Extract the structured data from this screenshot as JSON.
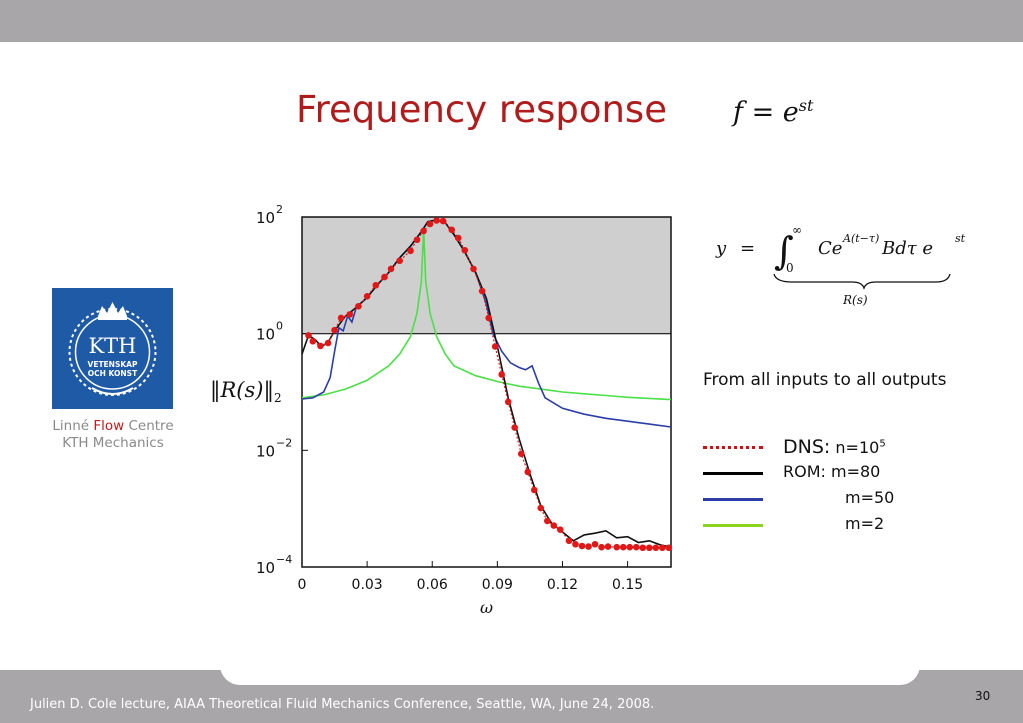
{
  "slide": {
    "title": "Frequency response",
    "title_equation": "f = e",
    "title_equation_sup": "st",
    "logo": {
      "name": "KTH",
      "line1": "VETENSKAP",
      "line2": "OCH KONST"
    },
    "logo_caption": {
      "part1": "Linné ",
      "flow": "Flow",
      "part2": " Centre",
      "line2": "KTH Mechanics"
    },
    "ylabel": "‖R(s)‖",
    "ylabel_sub": "2",
    "xlabel": "ω",
    "equation_right": "y = ∫₀^∞ C e^{A(t−τ)} B dτ e^{st}",
    "equation_right_under": "R(s)",
    "subtitle": "From all inputs to all outputs",
    "footer": "Julien D. Cole lecture, AIAA Theoretical Fluid Mechanics Conference, Seattle, WA, June 24, 2008.",
    "page_number": "30"
  },
  "legend": [
    {
      "label_prefix": "DNS:",
      "label": " n=10",
      "sup": "5",
      "color": "#cc1111",
      "style": "dotted"
    },
    {
      "label_prefix": "ROM:",
      "label": " m=80",
      "sup": "",
      "color": "#000000",
      "style": "solid"
    },
    {
      "label_prefix": "",
      "label": "m=50",
      "sup": "",
      "color": "#2b3ea8",
      "style": "solid"
    },
    {
      "label_prefix": "",
      "label": "m=2",
      "sup": "",
      "color": "#8fd21e",
      "style": "solid"
    }
  ],
  "chart_data": {
    "type": "line",
    "xlabel": "ω",
    "ylabel": "‖R(s)‖₂",
    "xlim": [
      0,
      0.17
    ],
    "ylim_log10": [
      -4,
      2
    ],
    "yscale": "log",
    "x_ticks": [
      "0",
      "0.03",
      "0.06",
      "0.09",
      "0.12",
      "0.15"
    ],
    "x_tick_values": [
      0,
      0.03,
      0.06,
      0.09,
      0.12,
      0.15
    ],
    "y_tick_exponents": [
      2,
      0,
      -2,
      -4
    ],
    "shaded_region_log10": [
      0,
      2
    ],
    "series": [
      {
        "name": "DNS: n=10^5",
        "color": "#e01818",
        "marker": "dot",
        "x": [
          0.003,
          0.005,
          0.0085,
          0.012,
          0.015,
          0.018,
          0.022,
          0.026,
          0.03,
          0.034,
          0.038,
          0.041,
          0.045,
          0.05,
          0.053,
          0.056,
          0.059,
          0.062,
          0.065,
          0.069,
          0.072,
          0.075,
          0.079,
          0.083,
          0.086,
          0.089,
          0.092,
          0.095,
          0.098,
          0.101,
          0.104,
          0.107,
          0.11,
          0.113,
          0.116,
          0.119,
          0.123,
          0.126,
          0.129,
          0.132,
          0.135,
          0.138,
          0.141,
          0.145,
          0.148,
          0.151,
          0.154,
          0.157,
          0.16,
          0.163,
          0.166,
          0.169
        ],
        "log10y": [
          -0.03,
          -0.13,
          -0.21,
          -0.16,
          0.06,
          0.27,
          0.33,
          0.47,
          0.64,
          0.83,
          0.97,
          1.11,
          1.25,
          1.42,
          1.61,
          1.76,
          1.88,
          1.94,
          1.93,
          1.78,
          1.64,
          1.43,
          1.11,
          0.73,
          0.27,
          -0.22,
          -0.7,
          -1.17,
          -1.61,
          -2.06,
          -2.37,
          -2.68,
          -2.99,
          -3.21,
          -3.29,
          -3.36,
          -3.55,
          -3.61,
          -3.64,
          -3.65,
          -3.61,
          -3.66,
          -3.65,
          -3.66,
          -3.66,
          -3.66,
          -3.66,
          -3.67,
          -3.67,
          -3.67,
          -3.67,
          -3.67
        ]
      },
      {
        "name": "ROM: m=80",
        "color": "#111111",
        "x": [
          0,
          0.003,
          0.006,
          0.009,
          0.012,
          0.015,
          0.02,
          0.025,
          0.03,
          0.035,
          0.04,
          0.045,
          0.05,
          0.055,
          0.058,
          0.062,
          0.066,
          0.07,
          0.075,
          0.08,
          0.085,
          0.09,
          0.095,
          0.1,
          0.105,
          0.11,
          0.115,
          0.12,
          0.125,
          0.13,
          0.135,
          0.14,
          0.145,
          0.15,
          0.155,
          0.16,
          0.165,
          0.17
        ],
        "log10y": [
          -0.35,
          -0.03,
          -0.1,
          -0.22,
          -0.15,
          0.05,
          0.3,
          0.45,
          0.62,
          0.85,
          1.05,
          1.3,
          1.5,
          1.75,
          1.92,
          1.95,
          1.9,
          1.7,
          1.4,
          1.05,
          0.6,
          -0.22,
          -1.1,
          -1.8,
          -2.4,
          -2.95,
          -3.25,
          -3.4,
          -3.55,
          -3.45,
          -3.42,
          -3.38,
          -3.5,
          -3.48,
          -3.58,
          -3.55,
          -3.62,
          -3.66
        ]
      },
      {
        "name": "m=50",
        "color": "#2b3ea8",
        "x": [
          0,
          0.005,
          0.01,
          0.013,
          0.015,
          0.017,
          0.019,
          0.021,
          0.023,
          0.025,
          0.03,
          0.035,
          0.04,
          0.045,
          0.05,
          0.055,
          0.058,
          0.062,
          0.066,
          0.07,
          0.075,
          0.08,
          0.085,
          0.088,
          0.092,
          0.096,
          0.1,
          0.103,
          0.106,
          0.109,
          0.112,
          0.12,
          0.13,
          0.14,
          0.15,
          0.16,
          0.17
        ],
        "log10y": [
          -1.12,
          -1.1,
          -1.0,
          -0.75,
          -0.3,
          0.1,
          0.05,
          0.3,
          0.2,
          0.45,
          0.62,
          0.85,
          1.05,
          1.3,
          1.5,
          1.75,
          1.92,
          1.95,
          1.9,
          1.7,
          1.4,
          1.05,
          0.5,
          0.0,
          -0.3,
          -0.5,
          -0.58,
          -0.62,
          -0.55,
          -0.85,
          -1.1,
          -1.28,
          -1.38,
          -1.45,
          -1.5,
          -1.55,
          -1.6
        ]
      },
      {
        "name": "m=2",
        "color": "#4ae046",
        "x": [
          0,
          0.01,
          0.02,
          0.03,
          0.04,
          0.045,
          0.05,
          0.053,
          0.055,
          0.056,
          0.057,
          0.059,
          0.062,
          0.066,
          0.07,
          0.08,
          0.09,
          0.1,
          0.11,
          0.12,
          0.13,
          0.14,
          0.15,
          0.16,
          0.17
        ],
        "log10y": [
          -1.1,
          -1.05,
          -0.95,
          -0.8,
          -0.55,
          -0.35,
          -0.05,
          0.35,
          0.9,
          1.8,
          0.9,
          0.35,
          -0.05,
          -0.35,
          -0.55,
          -0.72,
          -0.82,
          -0.9,
          -0.95,
          -1.0,
          -1.03,
          -1.06,
          -1.09,
          -1.11,
          -1.13
        ]
      }
    ]
  }
}
